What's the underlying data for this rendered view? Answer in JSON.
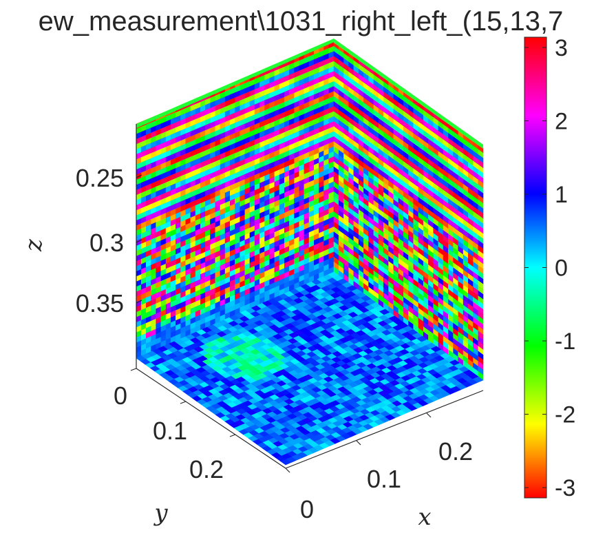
{
  "chart_data": {
    "type": "heatmap",
    "subtype": "3d-volume-slices",
    "title": "ew_measurement\\1031_right_left_(15,13,7",
    "xlabel": "x",
    "ylabel": "y",
    "zlabel": "z",
    "x_ticks": [
      "0",
      "0.1",
      "0.2"
    ],
    "y_ticks": [
      "0",
      "0.1",
      "0.2"
    ],
    "z_ticks": [
      "0.25",
      "0.3",
      "0.35"
    ],
    "z_reversed": true,
    "colorbar": {
      "min": -3.14,
      "max": 3.14,
      "ticks": [
        "3",
        "2",
        "1",
        "0",
        "-1",
        "-2",
        "-3"
      ],
      "tick_values": [
        3,
        2,
        1,
        0,
        -1,
        -2,
        -3
      ],
      "colormap": "hsv"
    },
    "slices": [
      {
        "plane": "bottom",
        "pattern": "noisy phase, mostly 0.3 to 1.2 (cyan to blue)",
        "mean_value": 0.6
      },
      {
        "plane": "left-back",
        "pattern": "horizontal bands cycling the full -pi to pi range"
      },
      {
        "plane": "right-back",
        "pattern": "horizontal bands cycling the full -pi to pi range"
      }
    ],
    "grid": false
  }
}
